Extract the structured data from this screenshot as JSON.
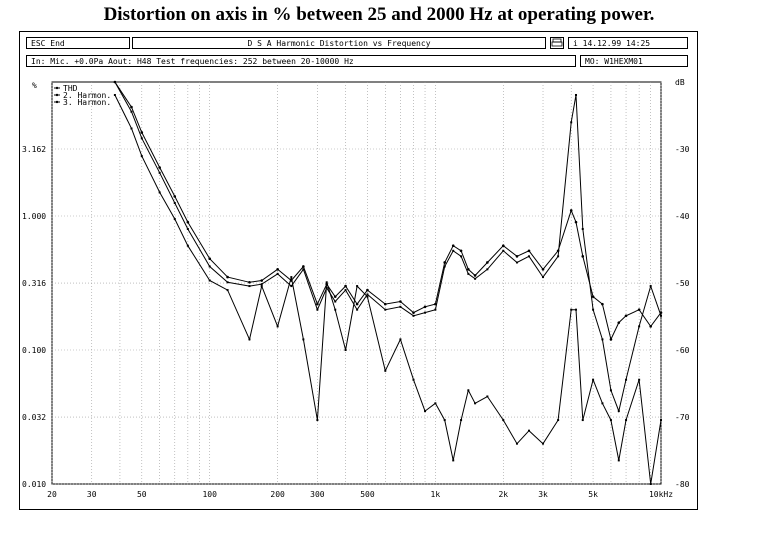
{
  "caption": "Distortion on axis in % between 25 and 2000 Hz at operating power.",
  "header": {
    "esc_label": "ESC End",
    "title": "D S A   Harmonic Distortion vs Frequency",
    "print_icon": "printer-icon",
    "info_icon": "info-icon",
    "datetime": "14.12.99  14:25",
    "settings": "In: Mic. +0.0Pa   Aout: H48   Test frequencies: 252 between 20-10000 Hz",
    "model": "MO: W1HEXM01"
  },
  "chart_data": {
    "type": "line",
    "title": "D S A   Harmonic Distortion vs Frequency",
    "xlabel": "",
    "ylabel": "%",
    "y2label": "dB",
    "x_scale": "log",
    "y_scale": "log",
    "xlim": [
      20,
      10000
    ],
    "ylim": [
      0.01,
      10
    ],
    "y2lim": [
      -80,
      -20
    ],
    "grid": true,
    "legend_position": "top-left",
    "x_ticks": [
      "20",
      "30",
      "50",
      "100",
      "200",
      "300",
      "500",
      "1k",
      "2k",
      "3k",
      "5k",
      "10kHz"
    ],
    "x_tick_values": [
      20,
      30,
      50,
      100,
      200,
      300,
      500,
      1000,
      2000,
      3000,
      5000,
      10000
    ],
    "y_ticks": [
      "0.010",
      "0.032",
      "0.100",
      "0.316",
      "1.000",
      "3.162"
    ],
    "y_tick_values": [
      0.01,
      0.0316,
      0.1,
      0.316,
      1.0,
      3.162
    ],
    "y2_ticks": [
      "dB",
      "-30",
      "-40",
      "-50",
      "-60",
      "-70",
      "-80"
    ],
    "y2_tick_values": [
      -20,
      -30,
      -40,
      -50,
      -60,
      -70,
      -80
    ],
    "series": [
      {
        "name": "THD",
        "x": [
          38,
          45,
          50,
          60,
          70,
          80,
          100,
          120,
          150,
          170,
          200,
          230,
          260,
          300,
          330,
          360,
          400,
          450,
          500,
          600,
          700,
          800,
          900,
          1000,
          1100,
          1200,
          1300,
          1400,
          1500,
          1700,
          2000,
          2300,
          2600,
          3000,
          3500,
          4000,
          4200,
          4500,
          5000,
          5500,
          6000,
          6500,
          7000,
          8000,
          9000,
          10000
        ],
        "y": [
          10,
          6.5,
          4.2,
          2.3,
          1.4,
          0.9,
          0.48,
          0.35,
          0.32,
          0.33,
          0.4,
          0.33,
          0.42,
          0.22,
          0.31,
          0.25,
          0.3,
          0.22,
          0.28,
          0.22,
          0.23,
          0.19,
          0.21,
          0.22,
          0.45,
          0.6,
          0.55,
          0.4,
          0.36,
          0.45,
          0.6,
          0.5,
          0.55,
          0.4,
          0.55,
          1.1,
          0.9,
          0.5,
          0.25,
          0.22,
          0.12,
          0.16,
          0.18,
          0.2,
          0.15,
          0.19
        ]
      },
      {
        "name": "2. Harmon.",
        "x": [
          38,
          45,
          50,
          60,
          70,
          80,
          100,
          120,
          150,
          170,
          200,
          230,
          260,
          300,
          330,
          360,
          400,
          450,
          500,
          600,
          700,
          800,
          900,
          1000,
          1100,
          1200,
          1300,
          1400,
          1500,
          1700,
          2000,
          2300,
          2600,
          3000,
          3500,
          4000,
          4200,
          4500,
          5000,
          5500,
          6000,
          6500,
          7000,
          8000,
          9000,
          10000
        ],
        "y": [
          10,
          6.0,
          3.8,
          2.1,
          1.25,
          0.8,
          0.42,
          0.32,
          0.3,
          0.31,
          0.37,
          0.3,
          0.4,
          0.2,
          0.29,
          0.23,
          0.28,
          0.2,
          0.26,
          0.2,
          0.21,
          0.18,
          0.19,
          0.2,
          0.42,
          0.55,
          0.5,
          0.37,
          0.34,
          0.4,
          0.55,
          0.45,
          0.5,
          0.35,
          0.5,
          5.0,
          8.0,
          0.8,
          0.2,
          0.12,
          0.05,
          0.035,
          0.06,
          0.15,
          0.3,
          0.18
        ]
      },
      {
        "name": "3. Harmon.",
        "x": [
          38,
          45,
          50,
          60,
          70,
          80,
          100,
          120,
          150,
          170,
          200,
          230,
          260,
          300,
          330,
          360,
          400,
          450,
          500,
          600,
          700,
          800,
          900,
          1000,
          1100,
          1200,
          1300,
          1400,
          1500,
          1700,
          2000,
          2300,
          2600,
          3000,
          3500,
          4000,
          4200,
          4500,
          5000,
          5500,
          6000,
          6500,
          7000,
          8000,
          9000,
          10000
        ],
        "y": [
          8,
          4.5,
          2.8,
          1.5,
          0.95,
          0.6,
          0.33,
          0.28,
          0.12,
          0.3,
          0.15,
          0.35,
          0.12,
          0.03,
          0.32,
          0.2,
          0.1,
          0.3,
          0.25,
          0.07,
          0.12,
          0.06,
          0.035,
          0.04,
          0.03,
          0.015,
          0.03,
          0.05,
          0.04,
          0.045,
          0.03,
          0.02,
          0.025,
          0.02,
          0.03,
          0.2,
          0.2,
          0.03,
          0.06,
          0.04,
          0.03,
          0.015,
          0.03,
          0.06,
          0.01,
          0.03
        ]
      }
    ]
  }
}
